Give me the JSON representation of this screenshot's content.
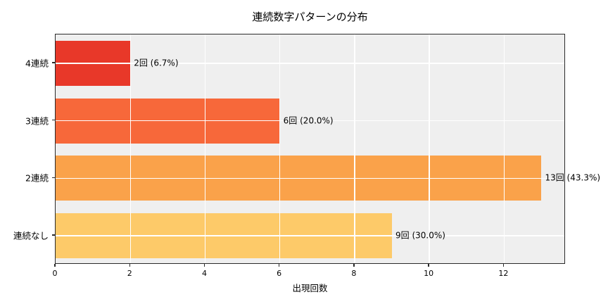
{
  "chart_data": {
    "type": "bar",
    "orientation": "horizontal",
    "title": "連続数字パターンの分布",
    "xlabel": "出現回数",
    "ylabel": "",
    "categories": [
      "4連続",
      "3連続",
      "2連続",
      "連続なし"
    ],
    "values": [
      2,
      6,
      13,
      9
    ],
    "value_labels": [
      "2回 (6.7%)",
      "6回 (20.0%)",
      "13回 (43.3%)",
      "9回 (30.0%)"
    ],
    "bar_colors": [
      "#e83829",
      "#f7683a",
      "#faa24a",
      "#fdca69"
    ],
    "xticks": [
      0,
      2,
      4,
      6,
      8,
      10,
      12
    ],
    "xlim": [
      0,
      13.65
    ],
    "grid": true,
    "grid_color": "#ffffff",
    "plot_background": "#efefef",
    "legend": "none"
  }
}
